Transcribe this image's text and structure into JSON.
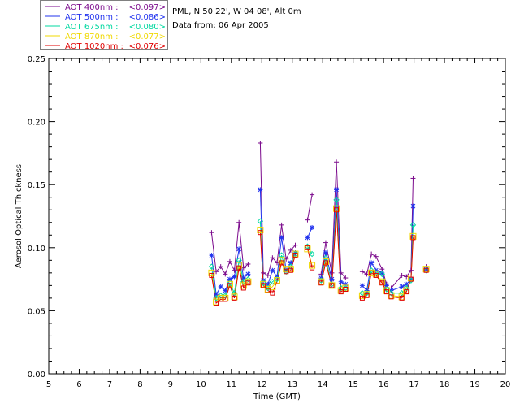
{
  "info": {
    "line1": "PML, N 50 22', W 04 08', Alt 0m",
    "line2": "Data from: 06 Apr 2005"
  },
  "chart_data": {
    "type": "line",
    "xlabel": "Time (GMT)",
    "ylabel": "Aerosol Optical Thickness",
    "xlim": [
      5,
      20
    ],
    "ylim": [
      0,
      0.25
    ],
    "xticks": [
      "5",
      "6",
      "7",
      "8",
      "9",
      "10",
      "11",
      "12",
      "13",
      "14",
      "15",
      "16",
      "17",
      "18",
      "19",
      "20"
    ],
    "yticks": [
      "0.00",
      "0.05",
      "0.10",
      "0.15",
      "0.20",
      "0.25"
    ],
    "legend_position": "top-left-outside",
    "x": [
      10.35,
      10.5,
      10.65,
      10.8,
      10.95,
      11.1,
      11.25,
      11.4,
      11.55,
      11.95,
      12.05,
      12.2,
      12.35,
      12.5,
      12.65,
      12.8,
      12.95,
      13.1,
      13.5,
      13.65,
      13.95,
      14.1,
      14.3,
      14.45,
      14.6,
      14.75,
      15.3,
      15.45,
      15.6,
      15.75,
      15.95,
      16.1,
      16.25,
      16.6,
      16.75,
      16.9,
      16.97,
      17.4
    ],
    "segment_breaks": [
      9,
      18,
      20,
      26,
      32,
      37
    ],
    "series": [
      {
        "name": "AOT  400nm : <0.097>",
        "legend_label": "AOT  400nm :",
        "legend_value": "<0.097>",
        "color": "#7b0a8c",
        "marker": "plus",
        "values": [
          0.112,
          0.081,
          0.085,
          0.079,
          0.089,
          0.082,
          0.12,
          0.084,
          0.087,
          0.183,
          0.08,
          0.078,
          0.092,
          0.088,
          0.118,
          0.091,
          0.098,
          0.102,
          0.122,
          0.142,
          0.079,
          0.104,
          0.08,
          0.168,
          0.08,
          0.076,
          0.081,
          0.079,
          0.095,
          0.093,
          0.083,
          0.071,
          0.068,
          0.078,
          0.077,
          0.082,
          0.155,
          0.085
        ]
      },
      {
        "name": "AOT  500nm : <0.086>",
        "legend_label": "AOT  500nm :",
        "legend_value": "<0.086>",
        "color": "#2233ee",
        "marker": "asterisk",
        "values": [
          0.094,
          0.063,
          0.069,
          0.066,
          0.075,
          0.077,
          0.099,
          0.076,
          0.079,
          0.146,
          0.074,
          0.071,
          0.082,
          0.077,
          0.108,
          0.082,
          0.088,
          0.096,
          0.108,
          0.116,
          0.076,
          0.096,
          0.075,
          0.146,
          0.073,
          0.071,
          0.07,
          0.066,
          0.088,
          0.082,
          0.08,
          0.07,
          0.066,
          0.069,
          0.071,
          0.075,
          0.133,
          0.083
        ]
      },
      {
        "name": "AOT  675nm : <0.080>",
        "legend_label": "AOT  675nm :",
        "legend_value": "<0.080>",
        "color": "#00d8a0",
        "marker": "diamond",
        "values": [
          0.085,
          0.06,
          0.062,
          0.062,
          0.072,
          0.064,
          0.09,
          0.073,
          0.075,
          0.121,
          0.072,
          0.068,
          0.073,
          0.075,
          0.094,
          0.081,
          0.085,
          0.095,
          0.101,
          0.095,
          0.074,
          0.092,
          0.071,
          0.138,
          0.068,
          0.068,
          0.064,
          0.064,
          0.082,
          0.08,
          0.079,
          0.067,
          0.064,
          0.064,
          0.068,
          0.074,
          0.118,
          0.082
        ]
      },
      {
        "name": "AOT  870nm : <0.077>",
        "legend_label": "AOT  870nm :",
        "legend_value": "<0.077>",
        "color": "#f0d800",
        "marker": "square",
        "values": [
          0.08,
          0.057,
          0.06,
          0.06,
          0.071,
          0.061,
          0.086,
          0.07,
          0.073,
          0.114,
          0.071,
          0.067,
          0.069,
          0.074,
          0.09,
          0.083,
          0.083,
          0.095,
          0.099,
          0.086,
          0.073,
          0.089,
          0.07,
          0.131,
          0.066,
          0.068,
          0.062,
          0.063,
          0.08,
          0.079,
          0.073,
          0.066,
          0.062,
          0.061,
          0.066,
          0.076,
          0.109,
          0.083
        ]
      },
      {
        "name": "AOT 1020nm : <0.076>",
        "legend_label": "AOT 1020nm :",
        "legend_value": "<0.076>",
        "color": "#e00000",
        "marker": "square",
        "values": [
          0.078,
          0.056,
          0.059,
          0.059,
          0.07,
          0.06,
          0.084,
          0.068,
          0.072,
          0.112,
          0.07,
          0.066,
          0.064,
          0.073,
          0.088,
          0.081,
          0.082,
          0.094,
          0.1,
          0.084,
          0.072,
          0.088,
          0.07,
          0.13,
          0.065,
          0.067,
          0.06,
          0.062,
          0.08,
          0.078,
          0.072,
          0.065,
          0.061,
          0.06,
          0.065,
          0.075,
          0.108,
          0.082
        ]
      }
    ]
  }
}
